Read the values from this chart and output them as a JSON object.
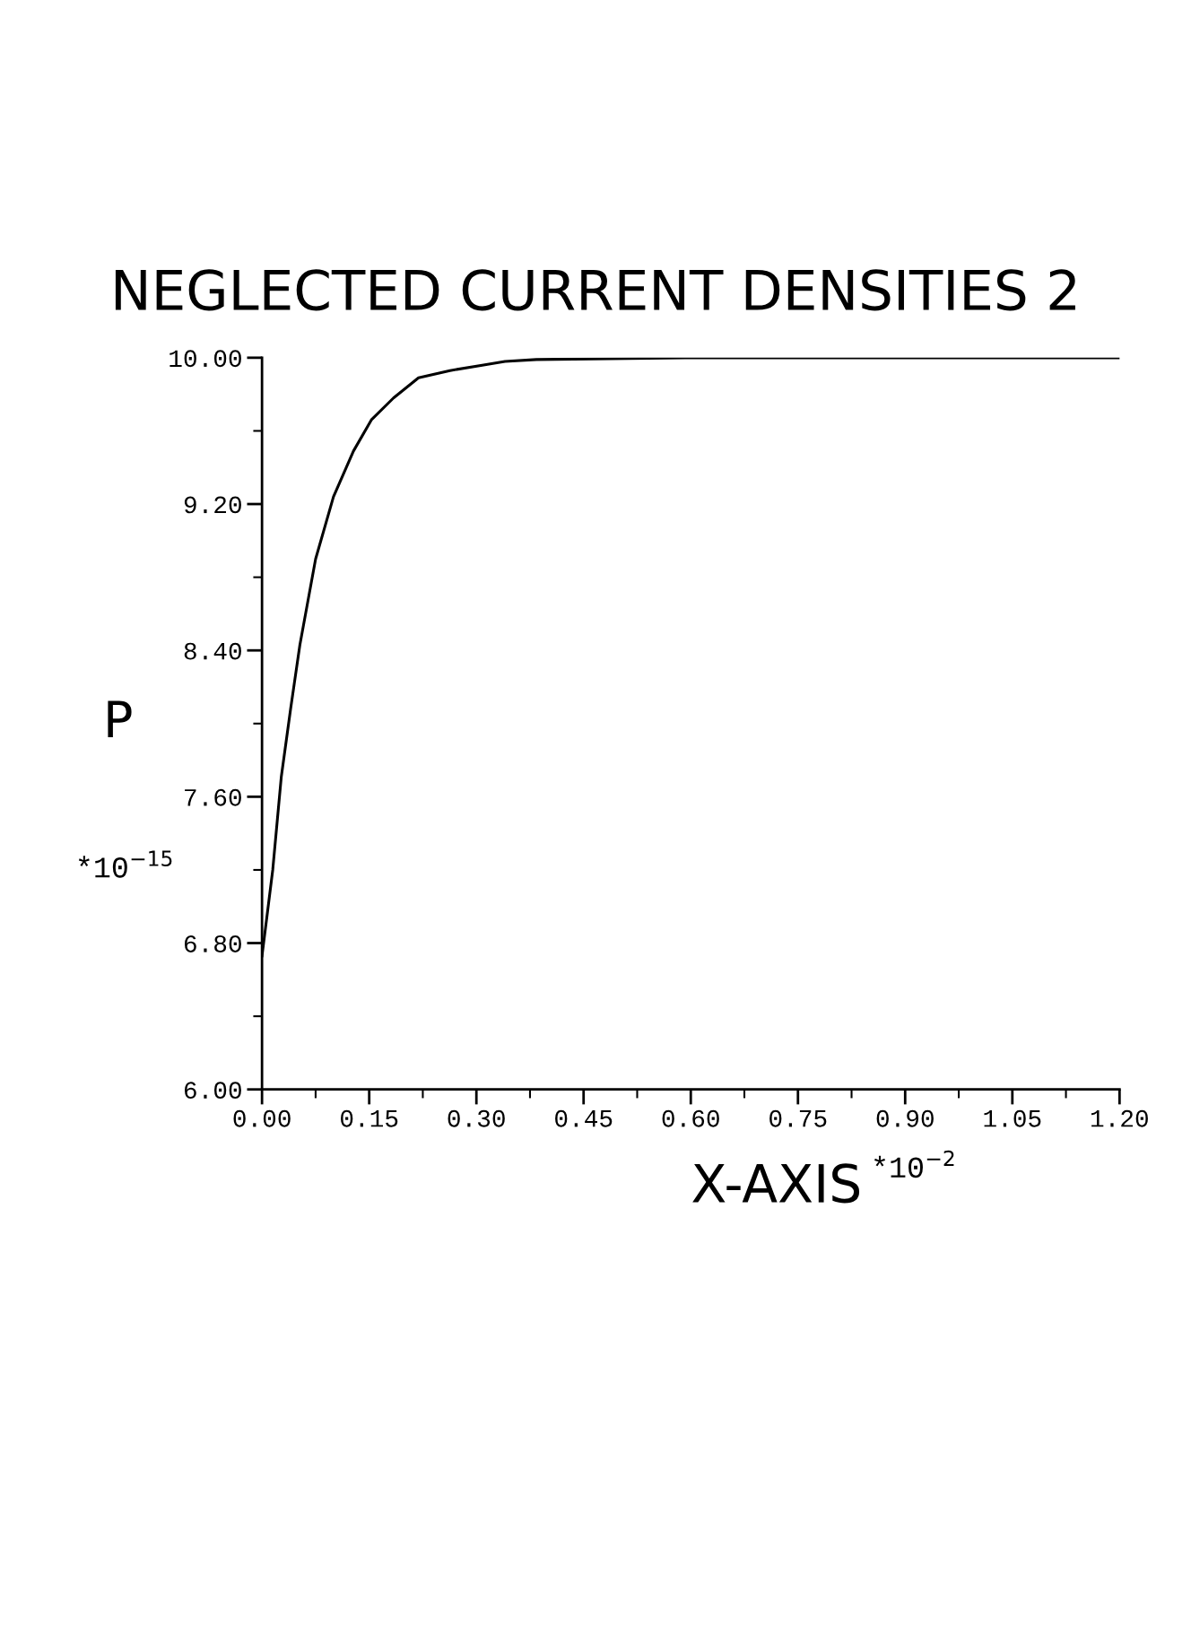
{
  "chart_data": {
    "type": "line",
    "title": "NEGLECTED CURRENT DENSITIES 2",
    "xlabel": "X-AXIS",
    "ylabel": "P",
    "annotations": [
      "*10$^{−2}$",
      "*10$^{−15}$"
    ],
    "x": [
      0,
      0.015,
      0.027,
      0.04,
      0.053,
      0.075,
      0.1,
      0.128,
      0.153,
      0.184,
      0.219,
      0.263,
      0.31,
      0.34,
      0.384,
      0.6,
      1.2
    ],
    "series": [
      {
        "color": "#000000",
        "values": [
          6.73,
          7.2,
          7.71,
          8.08,
          8.43,
          8.9,
          9.24,
          9.49,
          9.66,
          9.78,
          9.89,
          9.93,
          9.96,
          9.98,
          9.99,
          10.0,
          10.0
        ]
      }
    ],
    "xlim": [
      0,
      1.2
    ],
    "ylim": [
      6,
      10
    ],
    "xticks": [
      {
        "value": 0,
        "label": "0.00"
      },
      {
        "value": 0.15,
        "label": "0.15"
      },
      {
        "value": 0.3,
        "label": "0.30"
      },
      {
        "value": 0.45,
        "label": "0.45"
      },
      {
        "value": 0.6,
        "label": "0.60"
      },
      {
        "value": 0.75,
        "label": "0.75"
      },
      {
        "value": 0.9,
        "label": "0.90"
      },
      {
        "value": 1.05,
        "label": "1.05"
      },
      {
        "value": 1.2,
        "label": "1.20"
      }
    ],
    "yticks": [
      {
        "value": 6,
        "label": "6.00"
      },
      {
        "value": 6.8,
        "label": "6.80"
      },
      {
        "value": 7.6,
        "label": "7.60"
      },
      {
        "value": 8.4,
        "label": "8.40"
      },
      {
        "value": 9.2,
        "label": "9.20"
      },
      {
        "value": 10,
        "label": "10.00"
      }
    ],
    "grid": false,
    "legend": false,
    "marker": "none",
    "line_style": "solid"
  }
}
